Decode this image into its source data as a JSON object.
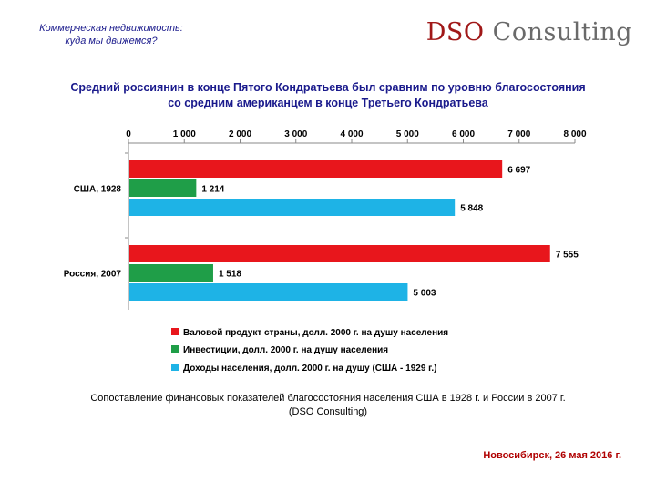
{
  "header": {
    "subtitle_line1": "Коммерческая недвижимость:",
    "subtitle_line2": "куда мы движемся?",
    "logo_part1": "DSO",
    "logo_part2": "Consulting"
  },
  "slide_title_line1": "Средний россиянин в конце Пятого Кондратьева был сравним по уровню благосостояния",
  "slide_title_line2": "со средним американцем в конце Третьего Кондратьева",
  "chart_data": {
    "type": "bar",
    "orientation": "horizontal",
    "categories": [
      "США, 1928",
      "Россия, 2007"
    ],
    "series": [
      {
        "name": "Валовой продукт страны, долл. 2000 г. на душу населения",
        "color": "#e8161c",
        "values": [
          6697,
          7555
        ],
        "labels": [
          "6 697",
          "7 555"
        ]
      },
      {
        "name": "Инвестиции, долл. 2000 г. на душу населения",
        "color": "#1f9e48",
        "values": [
          1214,
          1518
        ],
        "labels": [
          "1 214",
          "1 518"
        ]
      },
      {
        "name": "Доходы населения, долл. 2000 г. на душу (США - 1929 г.)",
        "color": "#1eb3e6",
        "values": [
          5848,
          5003
        ],
        "labels": [
          "5 848",
          "5 003"
        ]
      }
    ],
    "xlim": [
      0,
      8000
    ],
    "ticks": [
      0,
      1000,
      2000,
      3000,
      4000,
      5000,
      6000,
      7000,
      8000
    ],
    "tick_labels": [
      "0",
      "1 000",
      "2 000",
      "3 000",
      "4 000",
      "5 000",
      "6 000",
      "7 000",
      "8 000"
    ],
    "axis_position": "top",
    "legend_position": "bottom",
    "grid": false
  },
  "caption_line1": "Сопоставление финансовых показателей благосостояния населения США в 1928 г. и России в 2007 г.",
  "caption_line2": "(DSO Consulting)",
  "footer": "Новосибирск, 26 мая 2016 г."
}
